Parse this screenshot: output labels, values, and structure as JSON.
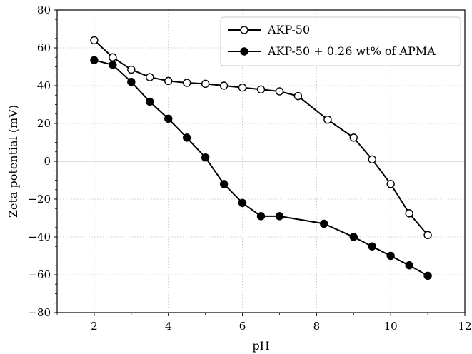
{
  "chart_data": {
    "type": "line",
    "xlabel": "pH",
    "ylabel": "Zeta potential (mV)",
    "xlim": [
      1,
      12
    ],
    "ylim": [
      -80,
      80
    ],
    "xticks": [
      2,
      4,
      6,
      8,
      10,
      12
    ],
    "yticks": [
      -80,
      -60,
      -40,
      -20,
      0,
      20,
      40,
      60,
      80
    ],
    "grid": true,
    "zero_line": true,
    "legend_position": "top-right",
    "series": [
      {
        "name": "AKP-50",
        "marker": "open-circle",
        "color": "#000000",
        "x": [
          2,
          2.5,
          3,
          3.5,
          4,
          4.5,
          5,
          5.5,
          6,
          6.5,
          7,
          7.5,
          8.3,
          9,
          9.5,
          10,
          10.5,
          11
        ],
        "y": [
          64,
          55,
          48.5,
          44.5,
          42.5,
          41.5,
          41,
          40,
          39,
          38,
          37,
          34.5,
          22,
          12.5,
          1,
          -12,
          -27.5,
          -39
        ]
      },
      {
        "name": "AKP-50 + 0.26 wt% of APMA",
        "marker": "filled-circle",
        "color": "#000000",
        "x": [
          2,
          2.5,
          3,
          3.5,
          4,
          4.5,
          5,
          5.5,
          6,
          6.5,
          7,
          8.2,
          9,
          9.5,
          10,
          10.5,
          11
        ],
        "y": [
          53.5,
          51,
          42,
          31.5,
          22.5,
          12.5,
          2,
          -12,
          -22,
          -29,
          -29,
          -33,
          -40,
          -45,
          -50,
          -55,
          -60.5
        ]
      }
    ]
  }
}
